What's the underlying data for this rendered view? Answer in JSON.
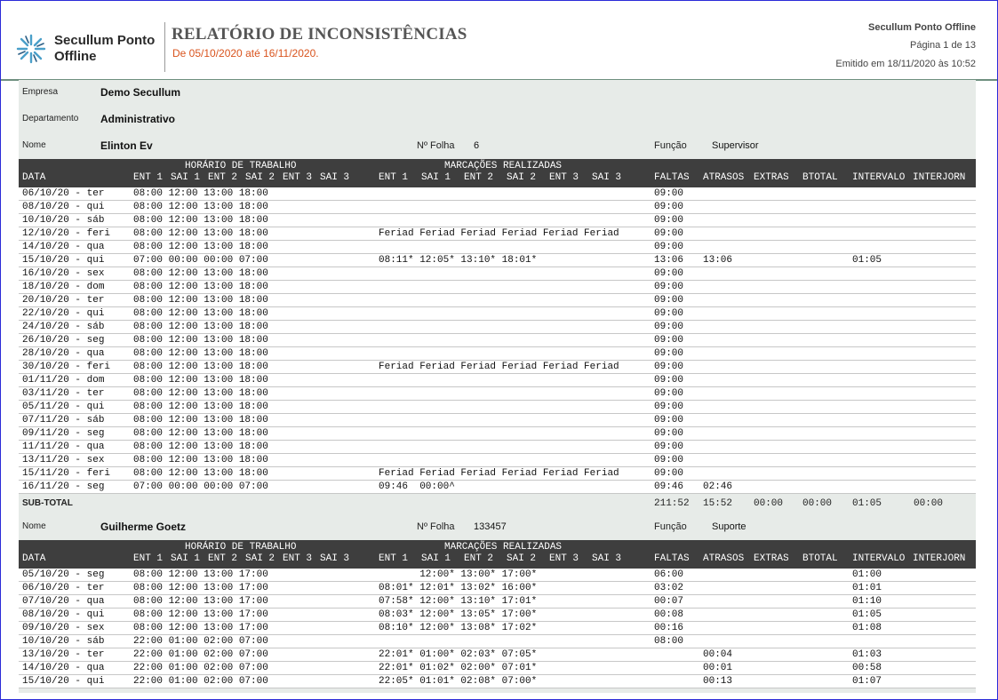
{
  "brand": "Secullum Ponto Offline",
  "brand_line1": "Secullum Ponto",
  "brand_line2": "Offline",
  "title": "RELATÓRIO DE INCONSISTÊNCIAS",
  "period": "De 05/10/2020 até 16/11/2020.",
  "app_name": "Secullum Ponto Offline",
  "page_info": "Página 1 de 13",
  "emitted": "Emitido em 18/11/2020 às 10:52",
  "empresa_label": "Empresa",
  "empresa": "Demo Secullum",
  "departamento_label": "Departamento",
  "departamento": "Administrativo",
  "labels": {
    "nome": "Nome",
    "folha": "Nº Folha",
    "funcao": "Função"
  },
  "columns": {
    "horario": "HORÁRIO DE TRABALHO",
    "marcacoes": "MARCAÇÕES REALIZADAS",
    "data": "DATA",
    "h_ent1": "ENT 1",
    "h_sai1": "SAI 1",
    "h_ent2": "ENT 2",
    "h_sai2": "SAI 2",
    "h_ent3": "ENT 3",
    "h_sai3": "SAI 3",
    "faltas": "FALTAS",
    "atrasos": "ATRASOS",
    "extras": "EXTRAS",
    "btotal": "BTOTAL",
    "intervalo": "INTERVALO",
    "interjorn": "INTERJORN"
  },
  "employees": [
    {
      "name": "Elinton Ev",
      "folha": "6",
      "funcao": "Supervisor",
      "rows": [
        [
          "06/10/20 - ter",
          "08:00 12:00 13:00 18:00",
          "",
          "09:00",
          "",
          "",
          "",
          ""
        ],
        [
          "08/10/20 - qui",
          "08:00 12:00 13:00 18:00",
          "",
          "09:00",
          "",
          "",
          "",
          ""
        ],
        [
          "10/10/20 - sáb",
          "08:00 12:00 13:00 18:00",
          "",
          "09:00",
          "",
          "",
          "",
          ""
        ],
        [
          "12/10/20 - feri",
          "08:00 12:00 13:00 18:00",
          "Feriad Feriad Feriad Feriad Feriad Feriad",
          "09:00",
          "",
          "",
          "",
          ""
        ],
        [
          "14/10/20 - qua",
          "08:00 12:00 13:00 18:00",
          "",
          "09:00",
          "",
          "",
          "",
          ""
        ],
        [
          "15/10/20 - qui",
          "07:00 00:00 00:00 07:00",
          "08:11* 12:05* 13:10* 18:01*",
          "13:06",
          "13:06",
          "",
          "",
          "01:05"
        ],
        [
          "16/10/20 - sex",
          "08:00 12:00 13:00 18:00",
          "",
          "09:00",
          "",
          "",
          "",
          ""
        ],
        [
          "18/10/20 - dom",
          "08:00 12:00 13:00 18:00",
          "",
          "09:00",
          "",
          "",
          "",
          ""
        ],
        [
          "20/10/20 - ter",
          "08:00 12:00 13:00 18:00",
          "",
          "09:00",
          "",
          "",
          "",
          ""
        ],
        [
          "22/10/20 - qui",
          "08:00 12:00 13:00 18:00",
          "",
          "09:00",
          "",
          "",
          "",
          ""
        ],
        [
          "24/10/20 - sáb",
          "08:00 12:00 13:00 18:00",
          "",
          "09:00",
          "",
          "",
          "",
          ""
        ],
        [
          "26/10/20 - seg",
          "08:00 12:00 13:00 18:00",
          "",
          "09:00",
          "",
          "",
          "",
          ""
        ],
        [
          "28/10/20 - qua",
          "08:00 12:00 13:00 18:00",
          "",
          "09:00",
          "",
          "",
          "",
          ""
        ],
        [
          "30/10/20 - feri",
          "08:00 12:00 13:00 18:00",
          "Feriad Feriad Feriad Feriad Feriad Feriad",
          "09:00",
          "",
          "",
          "",
          ""
        ],
        [
          "01/11/20 - dom",
          "08:00 12:00 13:00 18:00",
          "",
          "09:00",
          "",
          "",
          "",
          ""
        ],
        [
          "03/11/20 - ter",
          "08:00 12:00 13:00 18:00",
          "",
          "09:00",
          "",
          "",
          "",
          ""
        ],
        [
          "05/11/20 - qui",
          "08:00 12:00 13:00 18:00",
          "",
          "09:00",
          "",
          "",
          "",
          ""
        ],
        [
          "07/11/20 - sáb",
          "08:00 12:00 13:00 18:00",
          "",
          "09:00",
          "",
          "",
          "",
          ""
        ],
        [
          "09/11/20 - seg",
          "08:00 12:00 13:00 18:00",
          "",
          "09:00",
          "",
          "",
          "",
          ""
        ],
        [
          "11/11/20 - qua",
          "08:00 12:00 13:00 18:00",
          "",
          "09:00",
          "",
          "",
          "",
          ""
        ],
        [
          "13/11/20 - sex",
          "08:00 12:00 13:00 18:00",
          "",
          "09:00",
          "",
          "",
          "",
          ""
        ],
        [
          "15/11/20 - feri",
          "08:00 12:00 13:00 18:00",
          "Feriad Feriad Feriad Feriad Feriad Feriad",
          "09:00",
          "",
          "",
          "",
          ""
        ],
        [
          "16/11/20 - seg",
          "07:00 00:00 00:00 07:00",
          "09:46  00:00^",
          "09:46",
          "02:46",
          "",
          "",
          ""
        ]
      ],
      "subtotal": {
        "label": "SUB-TOTAL",
        "faltas": "211:52",
        "atrasos": "15:52",
        "extras": "00:00",
        "btotal": "00:00",
        "intervalo": "01:05",
        "interjorn": "00:00"
      }
    },
    {
      "name": "Guilherme Goetz",
      "folha": "133457",
      "funcao": "Suporte",
      "rows": [
        [
          "05/10/20 - seg",
          "08:00 12:00 13:00 17:00",
          "       12:00* 13:00* 17:00*",
          "06:00",
          "",
          "",
          "",
          "01:00"
        ],
        [
          "06/10/20 - ter",
          "08:00 12:00 13:00 17:00",
          "08:01* 12:01* 13:02* 16:00*",
          "03:02",
          "",
          "",
          "",
          "01:01"
        ],
        [
          "07/10/20 - qua",
          "08:00 12:00 13:00 17:00",
          "07:58* 12:00* 13:10* 17:01*",
          "00:07",
          "",
          "",
          "",
          "01:10"
        ],
        [
          "08/10/20 - qui",
          "08:00 12:00 13:00 17:00",
          "08:03* 12:00* 13:05* 17:00*",
          "00:08",
          "",
          "",
          "",
          "01:05"
        ],
        [
          "09/10/20 - sex",
          "08:00 12:00 13:00 17:00",
          "08:10* 12:00* 13:08* 17:02*",
          "00:16",
          "",
          "",
          "",
          "01:08"
        ],
        [
          "10/10/20 - sáb",
          "22:00 01:00 02:00 07:00",
          "",
          "08:00",
          "",
          "",
          "",
          ""
        ],
        [
          "13/10/20 - ter",
          "22:00 01:00 02:00 07:00",
          "22:01* 01:00* 02:03* 07:05*",
          "",
          "00:04",
          "",
          "",
          "01:03"
        ],
        [
          "14/10/20 - qua",
          "22:00 01:00 02:00 07:00",
          "22:01* 01:02* 02:00* 07:01*",
          "",
          "00:01",
          "",
          "",
          "00:58"
        ],
        [
          "15/10/20 - qui",
          "22:00 01:00 02:00 07:00",
          "22:05* 01:01* 02:08* 07:00*",
          "",
          "00:13",
          "",
          "",
          "01:07"
        ]
      ]
    }
  ]
}
